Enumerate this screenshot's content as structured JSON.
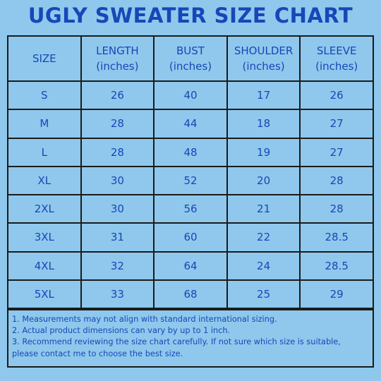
{
  "title": "UGLY SWEATER SIZE CHART",
  "table": {
    "headers": [
      {
        "line1": "SIZE",
        "line2": ""
      },
      {
        "line1": "LENGTH",
        "line2": "(inches)"
      },
      {
        "line1": "BUST",
        "line2": "(inches)"
      },
      {
        "line1": "SHOULDER",
        "line2": "(inches)"
      },
      {
        "line1": "SLEEVE",
        "line2": "(inches)"
      }
    ],
    "rows": [
      [
        "S",
        "26",
        "40",
        "17",
        "26"
      ],
      [
        "M",
        "28",
        "44",
        "18",
        "27"
      ],
      [
        "L",
        "28",
        "48",
        "19",
        "27"
      ],
      [
        "XL",
        "30",
        "52",
        "20",
        "28"
      ],
      [
        "2XL",
        "30",
        "56",
        "21",
        "28"
      ],
      [
        "3XL",
        "31",
        "60",
        "22",
        "28.5"
      ],
      [
        "4XL",
        "32",
        "64",
        "24",
        "28.5"
      ],
      [
        "5XL",
        "33",
        "68",
        "25",
        "29"
      ]
    ]
  },
  "notes": [
    "1. Measurements may not align with standard international sizing.",
    "2. Actual product dimensions can vary by up to 1 inch.",
    "3. Recommend reviewing the size chart carefully. If not sure which size is suitable, please contact me to choose the best size."
  ],
  "colors": {
    "background": "#8fc8ec",
    "text": "#1747b8",
    "border": "#1b1b1b"
  }
}
